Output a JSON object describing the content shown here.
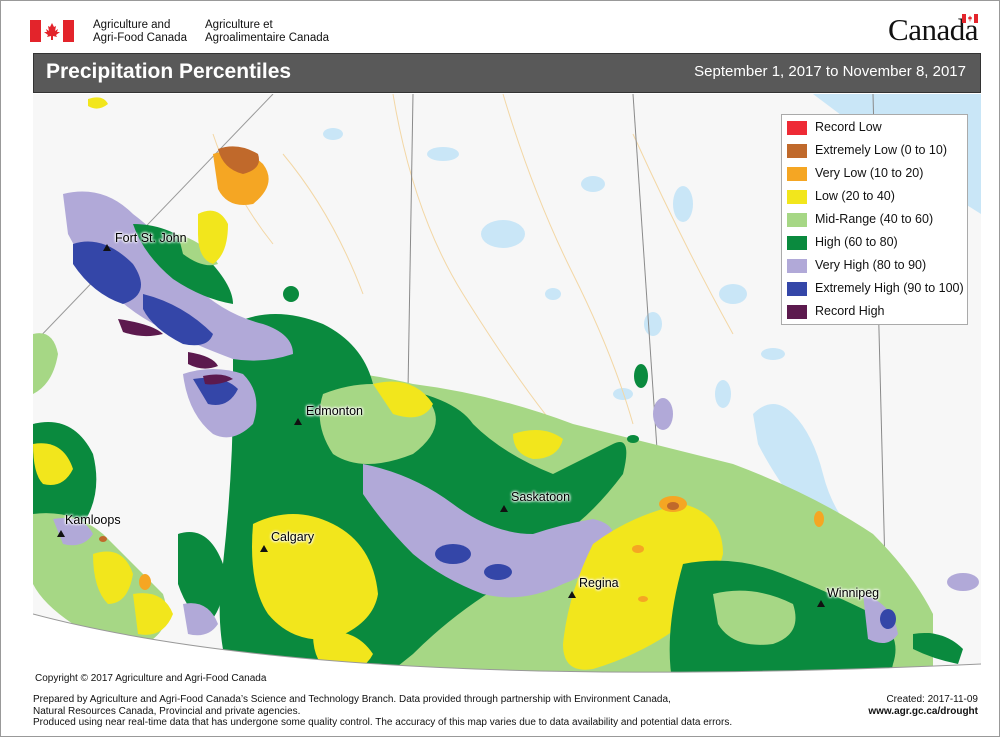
{
  "header": {
    "agency_en_line1": "Agriculture and",
    "agency_en_line2": "Agri-Food Canada",
    "agency_fr_line1": "Agriculture et",
    "agency_fr_line2": "Agroalimentaire Canada",
    "wordmark": "Canada",
    "flag_icon": "canada-flag-icon"
  },
  "title_bar": {
    "title": "Precipitation Percentiles",
    "date_range": "September 1, 2017 to November 8, 2017"
  },
  "legend": {
    "items": [
      {
        "label": "Record Low",
        "color": "#ee2a35"
      },
      {
        "label": "Extremely Low (0 to 10)",
        "color": "#c0692b"
      },
      {
        "label": "Very Low (10 to 20)",
        "color": "#f5a623"
      },
      {
        "label": "Low (20 to 40)",
        "color": "#f2e61c"
      },
      {
        "label": "Mid-Range (40 to 60)",
        "color": "#a6d785"
      },
      {
        "label": "High (60 to 80)",
        "color": "#0a8a3e"
      },
      {
        "label": "Very High (80 to 90)",
        "color": "#b1a9d8"
      },
      {
        "label": "Extremely High (90 to 100)",
        "color": "#3446a8"
      },
      {
        "label": "Record High",
        "color": "#5c1a4e"
      }
    ]
  },
  "cities": {
    "fort_st_john": "Fort St. John",
    "edmonton": "Edmonton",
    "saskatoon": "Saskatoon",
    "kamloops": "Kamloops",
    "calgary": "Calgary",
    "regina": "Regina",
    "winnipeg": "Winnipeg"
  },
  "map_colors": {
    "background": "#f7f7f7",
    "water": "#c9e6f7",
    "roads": "#f3d7a5",
    "boundaries": "#888888"
  },
  "copyright": "Copyright © 2017 Agriculture and Agri-Food Canada",
  "footer": {
    "line1": "Prepared by Agriculture and Agri-Food Canada’s Science and Technology Branch. Data provided through partnership with Environment Canada,",
    "line2": "Natural Resources Canada, Provincial and private agencies.",
    "line3": "Produced using near real-time data that has undergone some quality control. The accuracy of this map varies due to data availability and potential data errors.",
    "created": "Created: 2017-11-09",
    "url": "www.agr.gc.ca/drought"
  }
}
